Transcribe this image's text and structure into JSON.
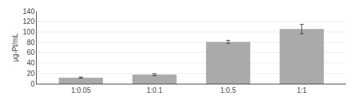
{
  "chart_data": {
    "type": "bar",
    "categories": [
      "1:0.05",
      "1:0.1",
      "1:0.5",
      "1:1"
    ],
    "values": [
      11.66,
      17.54,
      80.83,
      105.6
    ],
    "errors": [
      1.13,
      1.84,
      2.91,
      9.0
    ],
    "color": "#aaaaaa",
    "ylabel": "μg-Pt/mL",
    "ylim": [
      0,
      140
    ],
    "yticks": [
      0,
      20,
      40,
      60,
      80,
      100,
      120,
      140
    ],
    "grid": true
  }
}
